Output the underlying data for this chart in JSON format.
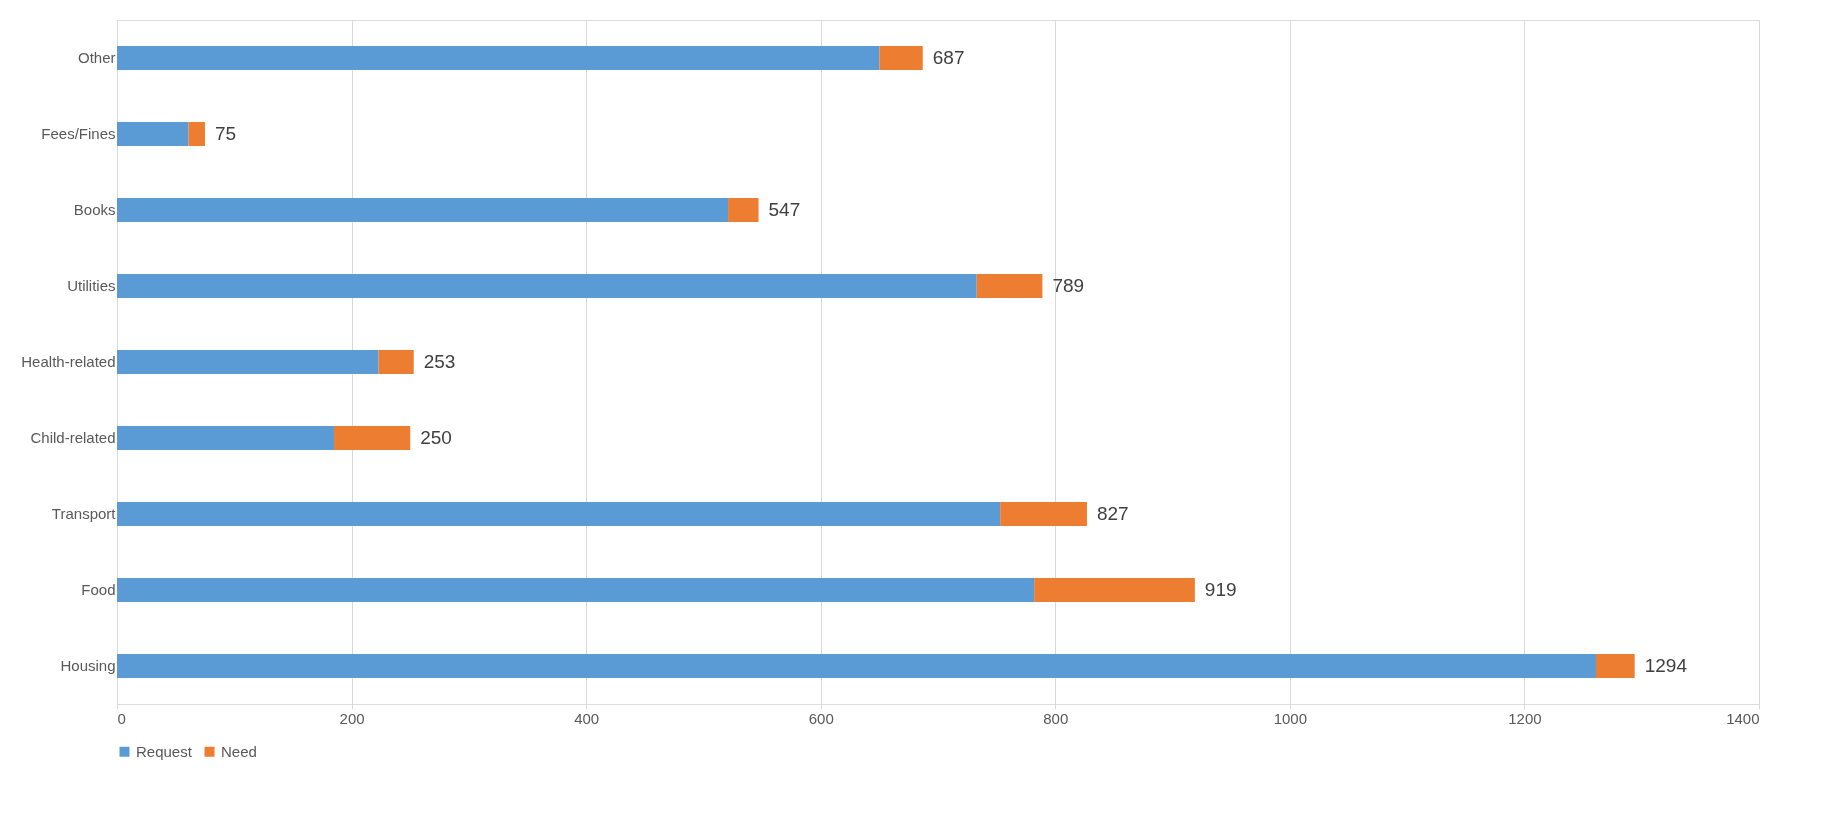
{
  "chart_data": {
    "type": "bar",
    "orientation": "horizontal",
    "stacked": true,
    "categories": [
      "Other",
      "Fees/Fines",
      "Books",
      "Utilities",
      "Health-related",
      "Child-related",
      "Transport",
      "Food",
      "Housing"
    ],
    "series": [
      {
        "name": "Request",
        "color": "#5b9bd5",
        "values": [
          650,
          61,
          521,
          733,
          223,
          185,
          753,
          782,
          1261
        ]
      },
      {
        "name": "Need",
        "color": "#ed7d31",
        "values": [
          37,
          14,
          26,
          56,
          30,
          65,
          74,
          137,
          33
        ]
      }
    ],
    "totals": [
      "687",
      "75",
      "547",
      "789",
      "253",
      "250",
      "827",
      "919",
      "1294"
    ],
    "xlim": [
      0,
      1400
    ],
    "xticks": [
      0,
      200,
      400,
      600,
      800,
      1000,
      1200,
      1400
    ],
    "grid": "x",
    "legend": "bottom"
  }
}
